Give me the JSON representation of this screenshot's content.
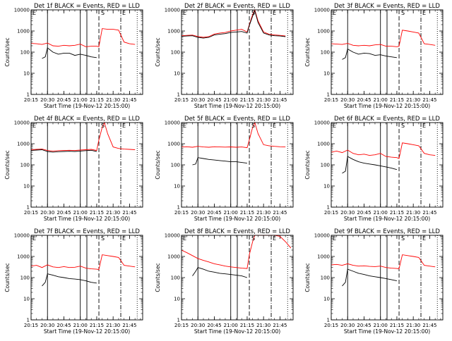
{
  "figure": {
    "ylabel": "Counts/sec",
    "xlabel": "Start Time (19-Nov-12 20:15:00)",
    "x_tick_labels": [
      "20:15",
      "20:30",
      "20:45",
      "21:00",
      "21:15",
      "21:30",
      "21:45"
    ],
    "y_tick_labels": [
      "1",
      "10",
      "100",
      "1000",
      "10000"
    ],
    "marker_labels": [
      "S",
      "E"
    ],
    "colors": {
      "events": "#000000",
      "lld": "#ff0000",
      "axes": "#000000"
    }
  },
  "chart_data": [
    {
      "type": "line",
      "title": "Det 1f BLACK = Events, RED = LLD",
      "xlabel": "Start Time (19-Nov-12 20:15:00)",
      "ylabel": "Counts/sec",
      "scale": "log",
      "ylim": [
        1,
        10000
      ],
      "xrange": [
        "20:15",
        "21:57"
      ],
      "vlines_solid": [
        "20:30",
        "21:00",
        "21:06"
      ],
      "vlines_dashed": [
        "21:17"
      ],
      "vlines_dashdot": [
        "21:37"
      ],
      "vlines_dotted": [
        "21:52"
      ],
      "series": [
        {
          "key": "lld",
          "x": [
            "20:15",
            "20:20",
            "20:25",
            "20:30",
            "20:35",
            "20:40",
            "20:45",
            "20:50",
            "20:55",
            "21:00",
            "21:05",
            "21:10",
            "21:15",
            "21:17",
            "21:20",
            "21:25",
            "21:30",
            "21:35",
            "21:40",
            "21:45",
            "21:50"
          ],
          "y": [
            260,
            250,
            230,
            270,
            200,
            190,
            210,
            200,
            210,
            240,
            180,
            190,
            190,
            180,
            1300,
            1200,
            1200,
            1100,
            300,
            250,
            230
          ]
        },
        {
          "key": "events",
          "x": [
            "20:25",
            "20:28",
            "20:30",
            "20:35",
            "20:40",
            "20:45",
            "20:50",
            "20:55",
            "21:00",
            "21:05",
            "21:10",
            "21:15"
          ],
          "y": [
            50,
            60,
            160,
            100,
            80,
            90,
            90,
            70,
            80,
            70,
            60,
            55
          ]
        }
      ]
    },
    {
      "type": "line",
      "title": "Det 2f BLACK = Events, RED = LLD",
      "xlabel": "Start Time (19-Nov-12 20:15:00)",
      "ylabel": "Counts/sec",
      "scale": "log",
      "ylim": [
        1,
        10000
      ],
      "xrange": [
        "20:15",
        "21:57"
      ],
      "vlines_solid": [
        "20:30",
        "21:00",
        "21:06"
      ],
      "vlines_dashed": [
        "21:17"
      ],
      "vlines_dashdot": [
        "21:37"
      ],
      "vlines_dotted": [
        "21:52"
      ],
      "series": [
        {
          "key": "lld",
          "x": [
            "20:15",
            "20:20",
            "20:25",
            "20:30",
            "20:35",
            "20:40",
            "20:45",
            "20:50",
            "20:55",
            "21:00",
            "21:05",
            "21:10",
            "21:15",
            "21:17",
            "21:20",
            "21:22",
            "21:25",
            "21:30",
            "21:35",
            "21:40",
            "21:45",
            "21:50"
          ],
          "y": [
            600,
            620,
            640,
            550,
            500,
            540,
            720,
            800,
            850,
            1000,
            1100,
            1200,
            900,
            2000,
            6000,
            10000,
            3000,
            900,
            700,
            650,
            620,
            580
          ]
        },
        {
          "key": "events",
          "x": [
            "20:15",
            "20:20",
            "20:25",
            "20:30",
            "20:35",
            "20:40",
            "20:45",
            "20:50",
            "20:55",
            "21:00",
            "21:05",
            "21:10",
            "21:15",
            "21:17",
            "21:20",
            "21:22",
            "21:25",
            "21:30",
            "21:35",
            "21:40",
            "21:45",
            "21:50"
          ],
          "y": [
            560,
            580,
            600,
            500,
            460,
            500,
            650,
            700,
            750,
            850,
            900,
            950,
            800,
            1800,
            5000,
            9000,
            2500,
            800,
            650,
            600,
            580,
            540
          ]
        }
      ]
    },
    {
      "type": "line",
      "title": "Det 3f BLACK = Events, RED = LLD",
      "xlabel": "Start Time (19-Nov-12 20:15:00)",
      "ylabel": "Counts/sec",
      "scale": "log",
      "ylim": [
        1,
        10000
      ],
      "xrange": [
        "20:15",
        "21:57"
      ],
      "vlines_solid": [
        "20:30",
        "21:00",
        "21:06"
      ],
      "vlines_dashed": [
        "21:17"
      ],
      "vlines_dashdot": [
        "21:37"
      ],
      "vlines_dotted": [
        "21:52"
      ],
      "series": [
        {
          "key": "lld",
          "x": [
            "20:15",
            "20:20",
            "20:25",
            "20:30",
            "20:35",
            "20:40",
            "20:45",
            "20:50",
            "20:55",
            "21:00",
            "21:05",
            "21:10",
            "21:15",
            "21:17",
            "21:20",
            "21:25",
            "21:30",
            "21:35",
            "21:40",
            "21:45",
            "21:50"
          ],
          "y": [
            250,
            240,
            230,
            260,
            210,
            200,
            210,
            200,
            220,
            230,
            190,
            190,
            180,
            190,
            1100,
            1000,
            900,
            800,
            250,
            230,
            210
          ]
        },
        {
          "key": "events",
          "x": [
            "20:25",
            "20:28",
            "20:30",
            "20:35",
            "20:40",
            "20:45",
            "20:50",
            "20:55",
            "21:00",
            "21:05",
            "21:10",
            "21:15"
          ],
          "y": [
            45,
            55,
            140,
            100,
            80,
            90,
            85,
            70,
            75,
            65,
            60,
            55
          ]
        }
      ]
    },
    {
      "type": "line",
      "title": "Det 4f BLACK = Events, RED = LLD",
      "xlabel": "Start Time (19-Nov-12 20:15:00)",
      "ylabel": "Counts/sec",
      "scale": "log",
      "ylim": [
        1,
        10000
      ],
      "xrange": [
        "20:15",
        "21:57"
      ],
      "vlines_solid": [
        "20:30",
        "21:00",
        "21:06"
      ],
      "vlines_dashed": [
        "21:17"
      ],
      "vlines_dashdot": [
        "21:37"
      ],
      "vlines_dotted": [
        "21:52"
      ],
      "series": [
        {
          "key": "lld",
          "x": [
            "20:15",
            "20:20",
            "20:25",
            "20:30",
            "20:35",
            "20:40",
            "20:45",
            "20:50",
            "20:55",
            "21:00",
            "21:05",
            "21:10",
            "21:15",
            "21:17",
            "21:20",
            "21:22",
            "21:25",
            "21:30",
            "21:35",
            "21:40",
            "21:45",
            "21:50"
          ],
          "y": [
            520,
            540,
            560,
            480,
            450,
            470,
            480,
            490,
            480,
            500,
            520,
            540,
            480,
            1500,
            6000,
            10000,
            3000,
            700,
            600,
            560,
            540,
            520
          ]
        },
        {
          "key": "events",
          "x": [
            "20:15",
            "20:20",
            "20:25",
            "20:30",
            "20:35",
            "20:40",
            "20:45",
            "20:50",
            "20:55",
            "21:00",
            "21:05",
            "21:10",
            "21:15"
          ],
          "y": [
            480,
            500,
            520,
            430,
            400,
            420,
            430,
            440,
            430,
            450,
            470,
            490,
            430
          ]
        }
      ]
    },
    {
      "type": "line",
      "title": "Det 5f BLACK = Events, RED = LLD",
      "xlabel": "Start Time (19-Nov-12 20:15:00)",
      "ylabel": "Counts/sec",
      "scale": "log",
      "ylim": [
        1,
        10000
      ],
      "xrange": [
        "20:15",
        "21:57"
      ],
      "vlines_solid": [
        "20:30",
        "21:00",
        "21:06"
      ],
      "vlines_dashed": [
        "21:17"
      ],
      "vlines_dashdot": [
        "21:37"
      ],
      "vlines_dotted": [
        "21:52"
      ],
      "series": [
        {
          "key": "lld",
          "x": [
            "20:15",
            "20:20",
            "20:25",
            "20:30",
            "20:35",
            "20:40",
            "20:45",
            "20:50",
            "20:55",
            "21:00",
            "21:05",
            "21:10",
            "21:15",
            "21:17",
            "21:20",
            "21:22",
            "21:25",
            "21:30",
            "21:35",
            "21:40",
            "21:45",
            "21:50"
          ],
          "y": [
            700,
            720,
            680,
            750,
            700,
            680,
            720,
            700,
            690,
            710,
            680,
            700,
            650,
            1500,
            6000,
            10000,
            3000,
            900,
            800,
            750,
            720,
            700
          ]
        },
        {
          "key": "events",
          "x": [
            "20:25",
            "20:28",
            "20:30",
            "20:35",
            "20:40",
            "20:45",
            "20:50",
            "20:55",
            "21:00",
            "21:05",
            "21:10",
            "21:15"
          ],
          "y": [
            100,
            110,
            220,
            200,
            180,
            170,
            160,
            150,
            140,
            140,
            130,
            120
          ]
        }
      ]
    },
    {
      "type": "line",
      "title": "Det 6f BLACK = Events, RED = LLD",
      "xlabel": "Start Time (19-Nov-12 20:15:00)",
      "ylabel": "Counts/sec",
      "scale": "log",
      "ylim": [
        1,
        10000
      ],
      "xrange": [
        "20:15",
        "21:57"
      ],
      "vlines_solid": [
        "20:30",
        "21:00",
        "21:06"
      ],
      "vlines_dashed": [
        "21:17"
      ],
      "vlines_dashdot": [
        "21:37"
      ],
      "vlines_dotted": [
        "21:52"
      ],
      "series": [
        {
          "key": "lld",
          "x": [
            "20:15",
            "20:20",
            "20:25",
            "20:30",
            "20:35",
            "20:40",
            "20:45",
            "20:50",
            "20:55",
            "21:00",
            "21:05",
            "21:10",
            "21:15",
            "21:17",
            "21:20",
            "21:25",
            "21:30",
            "21:35",
            "21:40",
            "21:45",
            "21:50"
          ],
          "y": [
            400,
            450,
            380,
            500,
            350,
            300,
            320,
            280,
            300,
            350,
            250,
            230,
            220,
            200,
            1100,
            1000,
            900,
            800,
            350,
            300,
            280
          ]
        },
        {
          "key": "events",
          "x": [
            "20:25",
            "20:28",
            "20:30",
            "20:35",
            "20:40",
            "20:45",
            "20:50",
            "20:55",
            "21:00",
            "21:05",
            "21:10",
            "21:15"
          ],
          "y": [
            40,
            50,
            250,
            180,
            140,
            120,
            110,
            100,
            90,
            80,
            70,
            60
          ]
        }
      ]
    },
    {
      "type": "line",
      "title": "Det 7f BLACK = Events, RED = LLD",
      "xlabel": "Start Time (19-Nov-12 20:15:00)",
      "ylabel": "Counts/sec",
      "scale": "log",
      "ylim": [
        1,
        10000
      ],
      "xrange": [
        "20:15",
        "21:57"
      ],
      "vlines_solid": [
        "20:30",
        "21:00",
        "21:06"
      ],
      "vlines_dashed": [
        "21:17"
      ],
      "vlines_dashdot": [
        "21:37"
      ],
      "vlines_dotted": [
        "21:52"
      ],
      "series": [
        {
          "key": "lld",
          "x": [
            "20:15",
            "20:20",
            "20:25",
            "20:30",
            "20:35",
            "20:40",
            "20:45",
            "20:50",
            "20:55",
            "21:00",
            "21:05",
            "21:10",
            "21:15",
            "21:17",
            "21:20",
            "21:25",
            "21:30",
            "21:35",
            "21:40",
            "21:45",
            "21:50"
          ],
          "y": [
            350,
            380,
            300,
            400,
            320,
            300,
            330,
            300,
            310,
            350,
            280,
            260,
            250,
            240,
            1200,
            1100,
            1000,
            900,
            380,
            350,
            320
          ]
        },
        {
          "key": "events",
          "x": [
            "20:25",
            "20:28",
            "20:30",
            "20:35",
            "20:40",
            "20:45",
            "20:50",
            "20:55",
            "21:00",
            "21:05",
            "21:10",
            "21:15"
          ],
          "y": [
            40,
            60,
            150,
            130,
            110,
            100,
            90,
            85,
            80,
            70,
            60,
            55
          ]
        }
      ]
    },
    {
      "type": "line",
      "title": "Det 8f BLACK = Events, RED = LLD",
      "xlabel": "Start Time (19-Nov-12 20:15:00)",
      "ylabel": "Counts/sec",
      "scale": "log",
      "ylim": [
        1,
        10000
      ],
      "xrange": [
        "20:15",
        "21:57"
      ],
      "vlines_solid": [
        "20:30",
        "21:00",
        "21:06"
      ],
      "vlines_dashed": [
        "21:17"
      ],
      "vlines_dashdot": [
        "21:37"
      ],
      "vlines_dotted": [
        "21:52"
      ],
      "series": [
        {
          "key": "lld",
          "x": [
            "20:15",
            "20:20",
            "20:25",
            "20:30",
            "20:35",
            "20:40",
            "20:45",
            "20:50",
            "20:55",
            "21:00",
            "21:05",
            "21:10",
            "21:15",
            "21:17",
            "21:20",
            "21:22",
            "21:25",
            "21:30",
            "21:35",
            "21:40",
            "21:45",
            "21:50",
            "21:55"
          ],
          "y": [
            2000,
            1500,
            1100,
            800,
            650,
            550,
            450,
            400,
            350,
            320,
            300,
            280,
            270,
            1200,
            5000,
            10000,
            10000,
            10000,
            10000,
            10000,
            9000,
            5000,
            2500
          ]
        },
        {
          "key": "events",
          "x": [
            "20:25",
            "20:28",
            "20:30",
            "20:35",
            "20:40",
            "20:45",
            "20:50",
            "20:55",
            "21:00",
            "21:05",
            "21:10",
            "21:15"
          ],
          "y": [
            120,
            200,
            300,
            250,
            200,
            180,
            160,
            150,
            140,
            130,
            120,
            100
          ]
        }
      ]
    },
    {
      "type": "line",
      "title": "Det 9f BLACK = Events, RED = LLD",
      "xlabel": "Start Time (19-Nov-12 20:15:00)",
      "ylabel": "Counts/sec",
      "scale": "log",
      "ylim": [
        1,
        10000
      ],
      "xrange": [
        "20:15",
        "21:57"
      ],
      "vlines_solid": [
        "20:30",
        "21:00",
        "21:06"
      ],
      "vlines_dashed": [
        "21:17"
      ],
      "vlines_dashdot": [
        "21:37"
      ],
      "vlines_dotted": [
        "21:52"
      ],
      "series": [
        {
          "key": "lld",
          "x": [
            "20:15",
            "20:20",
            "20:25",
            "20:30",
            "20:35",
            "20:40",
            "20:45",
            "20:50",
            "20:55",
            "21:00",
            "21:05",
            "21:10",
            "21:15",
            "21:17",
            "21:20",
            "21:25",
            "21:30",
            "21:35",
            "21:40",
            "21:45",
            "21:50"
          ],
          "y": [
            400,
            420,
            380,
            450,
            380,
            350,
            360,
            340,
            330,
            350,
            300,
            280,
            270,
            260,
            1200,
            1100,
            1000,
            900,
            380,
            350,
            320
          ]
        },
        {
          "key": "events",
          "x": [
            "20:25",
            "20:28",
            "20:30",
            "20:35",
            "20:40",
            "20:45",
            "20:50",
            "20:55",
            "21:00",
            "21:05",
            "21:10",
            "21:15"
          ],
          "y": [
            40,
            60,
            250,
            200,
            160,
            140,
            120,
            110,
            100,
            90,
            80,
            70
          ]
        }
      ]
    }
  ]
}
